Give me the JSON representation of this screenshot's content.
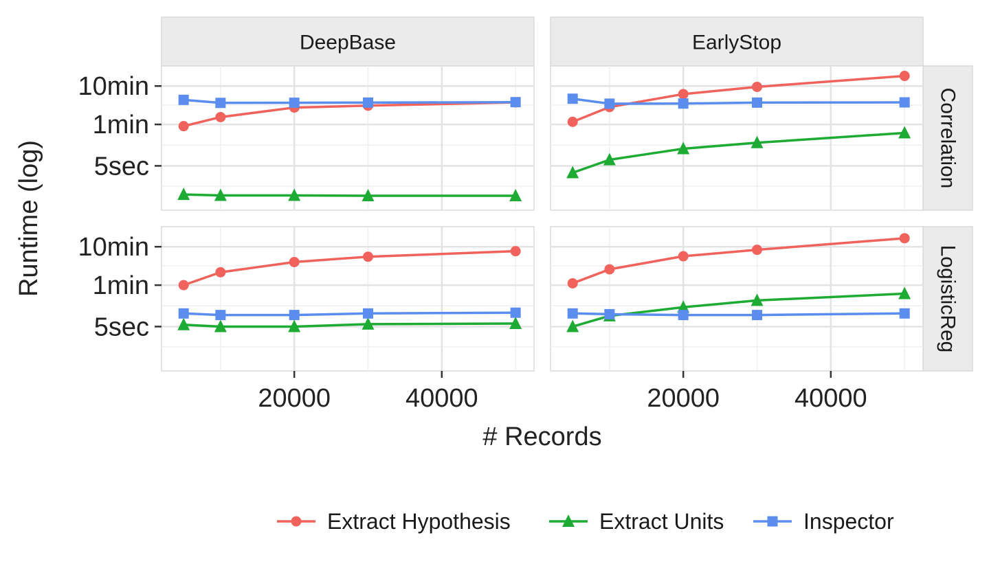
{
  "chart_data": {
    "type": "line",
    "xlabel": "# Records",
    "ylabel": "Runtime (log)",
    "y_scale": "log",
    "x_ticks": [
      20000,
      40000
    ],
    "x_tick_labels": [
      "20000",
      "40000"
    ],
    "y_ticks_seconds": [
      600,
      60,
      5
    ],
    "y_tick_labels": [
      "10min",
      "1min",
      "5sec"
    ],
    "ylim_seconds": [
      0.35,
      2000
    ],
    "xlim": [
      2000,
      52500
    ],
    "grid": true,
    "legend": {
      "position": "bottom"
    },
    "columns": [
      "DeepBase",
      "EarlyStop"
    ],
    "rows": [
      "Correlation",
      "LogisticReg"
    ],
    "series_styles": [
      {
        "name": "Extract Hypothesis",
        "color": "#F0625C",
        "marker": "circle"
      },
      {
        "name": "Extract Units",
        "color": "#1DAB34",
        "marker": "triangle"
      },
      {
        "name": "Inspector",
        "color": "#5B8DEF",
        "marker": "square"
      }
    ],
    "x": [
      5000,
      10000,
      20000,
      30000,
      50000
    ],
    "panels": [
      {
        "column": "DeepBase",
        "row": "Correlation",
        "series": [
          {
            "name": "Extract Hypothesis",
            "values": [
              54,
              93,
              165,
              185,
              225
            ]
          },
          {
            "name": "Extract Units",
            "values": [
              0.9,
              0.85,
              0.85,
              0.83,
              0.83
            ]
          },
          {
            "name": "Inspector",
            "values": [
              262,
              218,
              220,
              222,
              228
            ]
          }
        ]
      },
      {
        "column": "EarlyStop",
        "row": "Correlation",
        "series": [
          {
            "name": "Extract Hypothesis",
            "values": [
              70,
              170,
              370,
              570,
              1100
            ]
          },
          {
            "name": "Extract Units",
            "values": [
              3.3,
              7.2,
              14,
              20,
              36
            ]
          },
          {
            "name": "Inspector",
            "values": [
              280,
              208,
              210,
              222,
              225
            ]
          }
        ]
      },
      {
        "column": "DeepBase",
        "row": "LogisticReg",
        "series": [
          {
            "name": "Extract Hypothesis",
            "values": [
              60,
              130,
              240,
              330,
              460
            ]
          },
          {
            "name": "Extract Units",
            "values": [
              5.6,
              5.0,
              5.0,
              5.8,
              6.0
            ]
          },
          {
            "name": "Inspector",
            "values": [
              11,
              10,
              10,
              11,
              11.5
            ]
          }
        ]
      },
      {
        "column": "EarlyStop",
        "row": "LogisticReg",
        "series": [
          {
            "name": "Extract Hypothesis",
            "values": [
              67,
              155,
              340,
              500,
              1000
            ]
          },
          {
            "name": "Extract Units",
            "values": [
              5.0,
              9.5,
              16,
              24,
              36
            ]
          },
          {
            "name": "Inspector",
            "values": [
              11,
              10.5,
              10,
              10,
              11
            ]
          }
        ]
      }
    ]
  }
}
